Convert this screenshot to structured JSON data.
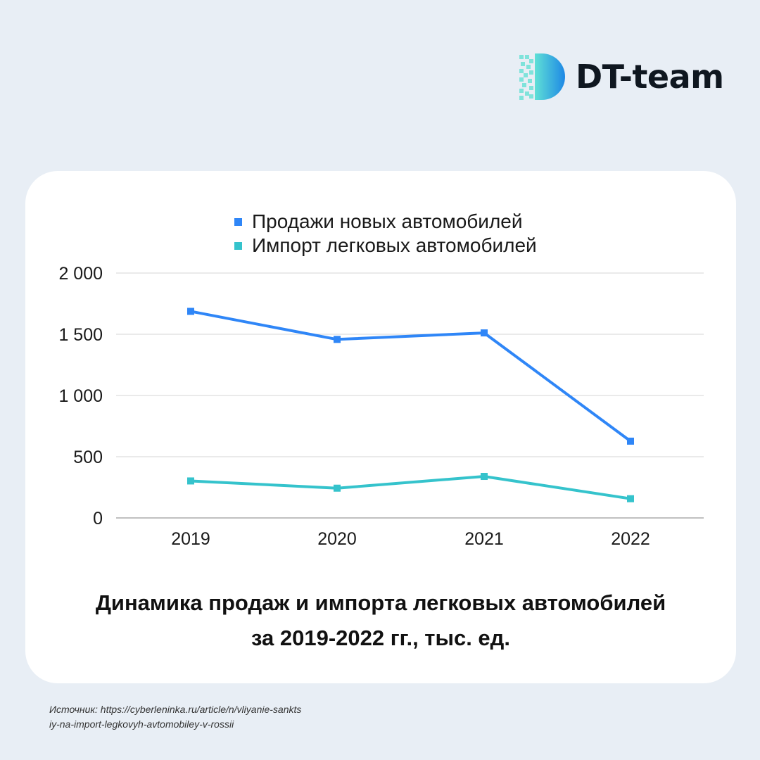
{
  "brand": {
    "name": "DT-team",
    "colors": {
      "primary": "#1e88e5",
      "secondary": "#4dd0e1"
    }
  },
  "chart_data": {
    "type": "line",
    "title_line1": "Динамика продаж и импорта легковых автомобилей",
    "title_line2": "за 2019-2022 гг., тыс. ед.",
    "categories": [
      "2019",
      "2020",
      "2021",
      "2022"
    ],
    "series": [
      {
        "name": "Продажи новых автомобилей",
        "color": "#2f86f7",
        "values": [
          1687,
          1458,
          1511,
          627
        ]
      },
      {
        "name": "Импорт легковых автомобилей",
        "color": "#35c3cc",
        "values": [
          302,
          243,
          339,
          157
        ]
      }
    ],
    "yticks": [
      {
        "value": 0,
        "label": "0"
      },
      {
        "value": 500,
        "label": "500"
      },
      {
        "value": 1000,
        "label": "1 000"
      },
      {
        "value": 1500,
        "label": "1 500"
      },
      {
        "value": 2000,
        "label": "2 000"
      }
    ],
    "ylim": [
      0,
      2000
    ],
    "xlabel": "",
    "ylabel": "",
    "legend": "top-center",
    "grid": true
  },
  "source": {
    "line1": "Источник: https://cyberleninka.ru/article/n/vliyanie-sankts",
    "line2": "iy-na-import-legkovyh-avtomobiley-v-rossii"
  }
}
